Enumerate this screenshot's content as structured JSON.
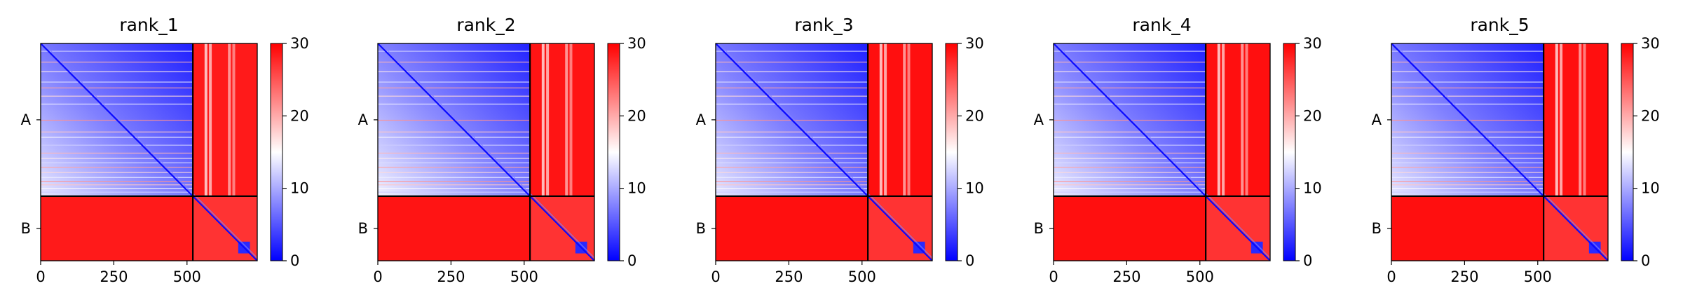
{
  "colors": {
    "low": "#0000ff",
    "mid": "#ffffff",
    "high": "#ff0000",
    "divider": "#000000"
  },
  "chart_data": [
    {
      "type": "heatmap",
      "title": "rank_1",
      "xlabel": "",
      "ylabel": "",
      "x_ticks": [
        0,
        250,
        500
      ],
      "y_tick_labels": [
        "A",
        "B"
      ],
      "chain_lengths": [
        520,
        220
      ],
      "colorbar": {
        "ticks": [
          0,
          10,
          20,
          30
        ],
        "range": [
          0,
          30
        ],
        "colormap": "bwr"
      },
      "off_diagonal_level": 0.95,
      "intra_A_level": 0.2
    },
    {
      "type": "heatmap",
      "title": "rank_2",
      "xlabel": "",
      "ylabel": "",
      "x_ticks": [
        0,
        250,
        500
      ],
      "y_tick_labels": [
        "A",
        "B"
      ],
      "chain_lengths": [
        520,
        220
      ],
      "colorbar": {
        "ticks": [
          0,
          10,
          20,
          30
        ],
        "range": [
          0,
          30
        ],
        "colormap": "bwr"
      },
      "off_diagonal_level": 0.96,
      "intra_A_level": 0.22
    },
    {
      "type": "heatmap",
      "title": "rank_3",
      "xlabel": "",
      "ylabel": "",
      "x_ticks": [
        0,
        250,
        500
      ],
      "y_tick_labels": [
        "A",
        "B"
      ],
      "chain_lengths": [
        520,
        220
      ],
      "colorbar": {
        "ticks": [
          0,
          10,
          20,
          30
        ],
        "range": [
          0,
          30
        ],
        "colormap": "bwr"
      },
      "off_diagonal_level": 0.97,
      "intra_A_level": 0.2
    },
    {
      "type": "heatmap",
      "title": "rank_4",
      "xlabel": "",
      "ylabel": "",
      "x_ticks": [
        0,
        250,
        500
      ],
      "y_tick_labels": [
        "A",
        "B"
      ],
      "chain_lengths": [
        520,
        220
      ],
      "colorbar": {
        "ticks": [
          0,
          10,
          20,
          30
        ],
        "range": [
          0,
          30
        ],
        "colormap": "bwr"
      },
      "off_diagonal_level": 0.97,
      "intra_A_level": 0.21
    },
    {
      "type": "heatmap",
      "title": "rank_5",
      "xlabel": "",
      "ylabel": "",
      "x_ticks": [
        0,
        250,
        500
      ],
      "y_tick_labels": [
        "A",
        "B"
      ],
      "chain_lengths": [
        520,
        220
      ],
      "colorbar": {
        "ticks": [
          0,
          10,
          20,
          30
        ],
        "range": [
          0,
          30
        ],
        "colormap": "bwr"
      },
      "off_diagonal_level": 0.97,
      "intra_A_level": 0.2
    }
  ]
}
